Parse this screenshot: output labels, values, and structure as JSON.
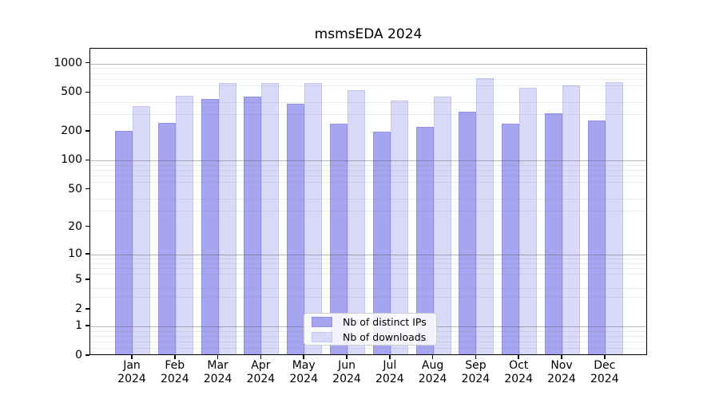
{
  "title": "msmsEDA 2024",
  "chart_data": {
    "type": "bar",
    "title": "msmsEDA 2024",
    "xlabel": "",
    "ylabel": "",
    "year_label": "2024",
    "categories": [
      "Jan",
      "Feb",
      "Mar",
      "Apr",
      "May",
      "Jun",
      "Jul",
      "Aug",
      "Sep",
      "Oct",
      "Nov",
      "Dec"
    ],
    "series": [
      {
        "name": "Nb of distinct IPs",
        "color": "#a5a5f0",
        "edge_color": "#9191e8",
        "values": [
          195,
          238,
          421,
          445,
          375,
          233,
          192,
          215,
          310,
          232,
          296,
          251
        ]
      },
      {
        "name": "Nb of downloads",
        "color": "#d9d9f8",
        "edge_color": "#c6c6f2",
        "values": [
          350,
          450,
          610,
          613,
          608,
          515,
          400,
          441,
          676,
          541,
          579,
          621
        ]
      }
    ],
    "yscale": "log1p",
    "ylim": [
      0,
      1425
    ],
    "yticks": [
      0,
      1,
      2,
      5,
      10,
      20,
      50,
      100,
      200,
      500,
      1000
    ],
    "major_grid_values": [
      1,
      10,
      100,
      1000
    ],
    "minor_grid_values": [
      0.2,
      0.4,
      0.6,
      0.8,
      3,
      4,
      6,
      7,
      8,
      9,
      30,
      40,
      60,
      70,
      80,
      90,
      300,
      400,
      600,
      700,
      800,
      900
    ],
    "grid": "on",
    "legend_position": "lower center"
  }
}
